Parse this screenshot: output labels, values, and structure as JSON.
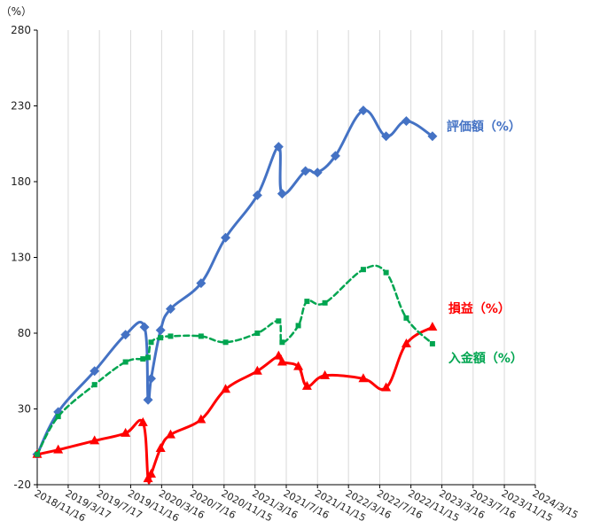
{
  "chart_data": {
    "type": "line",
    "y_unit": "（%）",
    "ylim": [
      -20,
      280
    ],
    "y_ticks": [
      -20,
      30,
      80,
      130,
      180,
      230,
      280
    ],
    "x_ticks": [
      "2018/11/16",
      "2019/3/17",
      "2019/7/17",
      "2019/11/16",
      "2020/3/16",
      "2020/7/16",
      "2020/11/15",
      "2021/3/16",
      "2021/7/16",
      "2021/11/15",
      "2022/3/16",
      "2022/7/16",
      "2022/11/15",
      "2023/3/16",
      "2023/7/16",
      "2023/11/15",
      "2024/3/15"
    ],
    "xlim": [
      "2018/11/16",
      "2024/3/15"
    ],
    "grid": "vertical-major",
    "legend": "end-of-line labels",
    "series": [
      {
        "name": "評価額（%）",
        "color": "#4472C4",
        "marker": "diamond",
        "dash": "solid",
        "points": [
          [
            "2018/11/16",
            0
          ],
          [
            "2019/2/6",
            28
          ],
          [
            "2019/6/28",
            55
          ],
          [
            "2019/10/27",
            79
          ],
          [
            "2020/1/9",
            84
          ],
          [
            "2020/1/23",
            36
          ],
          [
            "2020/2/4",
            50
          ],
          [
            "2020/3/12",
            82
          ],
          [
            "2020/4/20",
            96
          ],
          [
            "2020/8/17",
            113
          ],
          [
            "2020/11/21",
            143
          ],
          [
            "2021/3/25",
            171
          ],
          [
            "2021/6/16",
            203
          ],
          [
            "2021/6/30",
            172
          ],
          [
            "2021/9/29",
            187
          ],
          [
            "2021/11/15",
            186
          ],
          [
            "2022/1/24",
            197
          ],
          [
            "2022/5/13",
            227
          ],
          [
            "2022/8/10",
            210
          ],
          [
            "2022/10/28",
            220
          ],
          [
            "2023/2/7",
            210
          ]
        ]
      },
      {
        "name": "損益（%）",
        "color": "#FF0000",
        "marker": "triangle",
        "dash": "solid",
        "points": [
          [
            "2018/11/16",
            0
          ],
          [
            "2019/2/6",
            3
          ],
          [
            "2019/6/28",
            9
          ],
          [
            "2019/10/27",
            14
          ],
          [
            "2020/1/3",
            21
          ],
          [
            "2020/1/23",
            -16
          ],
          [
            "2020/2/4",
            -13
          ],
          [
            "2020/3/12",
            4
          ],
          [
            "2020/4/20",
            13
          ],
          [
            "2020/8/17",
            23
          ],
          [
            "2020/11/21",
            43
          ],
          [
            "2021/3/25",
            55
          ],
          [
            "2021/6/16",
            65
          ],
          [
            "2021/6/30",
            61
          ],
          [
            "2021/9/1",
            58
          ],
          [
            "2021/10/5",
            45
          ],
          [
            "2021/12/14",
            52
          ],
          [
            "2022/5/13",
            50
          ],
          [
            "2022/8/10",
            44
          ],
          [
            "2022/10/28",
            73
          ],
          [
            "2023/2/7",
            84
          ]
        ]
      },
      {
        "name": "入金額（%）",
        "color": "#00A550",
        "marker": "square",
        "dash": "dashed",
        "points": [
          [
            "2018/11/16",
            0
          ],
          [
            "2019/2/6",
            25
          ],
          [
            "2019/6/28",
            46
          ],
          [
            "2019/10/27",
            61
          ],
          [
            "2020/1/3",
            63
          ],
          [
            "2020/1/23",
            64
          ],
          [
            "2020/2/4",
            74
          ],
          [
            "2020/3/12",
            77
          ],
          [
            "2020/4/20",
            78
          ],
          [
            "2020/8/17",
            78
          ],
          [
            "2020/11/21",
            74
          ],
          [
            "2021/3/25",
            80
          ],
          [
            "2021/6/16",
            88
          ],
          [
            "2021/6/30",
            74
          ],
          [
            "2021/9/1",
            85
          ],
          [
            "2021/10/5",
            101
          ],
          [
            "2021/12/14",
            100
          ],
          [
            "2022/5/13",
            122
          ],
          [
            "2022/8/10",
            120
          ],
          [
            "2022/10/28",
            90
          ],
          [
            "2023/2/7",
            73
          ]
        ]
      }
    ]
  }
}
